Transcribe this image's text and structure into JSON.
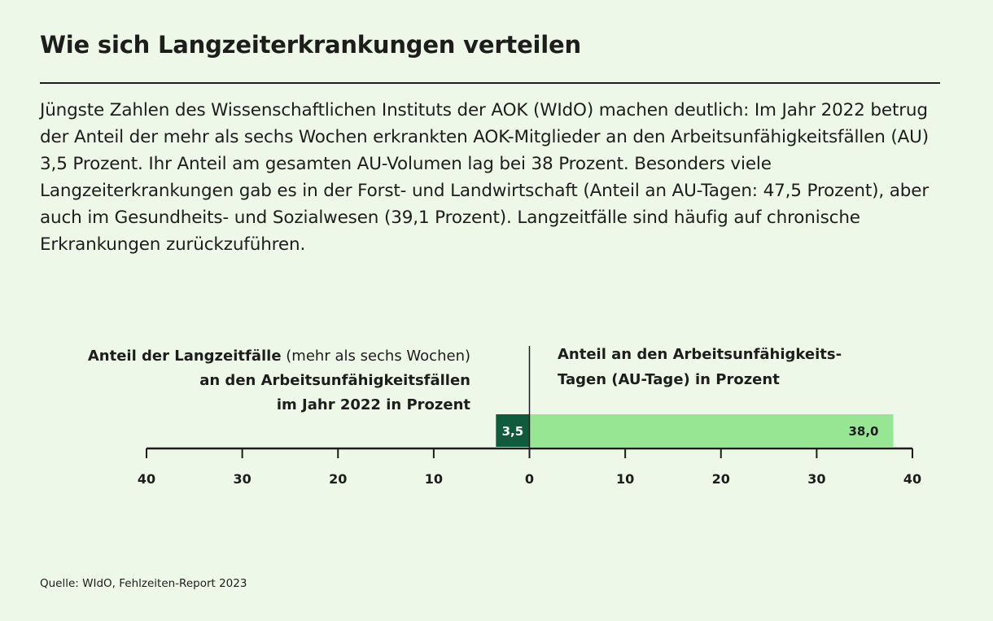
{
  "header": {
    "title": "Wie sich Langzeiterkrankungen verteilen",
    "intro": "Jüngste Zahlen des Wissenschaftlichen Instituts der AOK (WIdO) machen deutlich: Im Jahr 2022 betrug der Anteil der mehr als sechs Wochen erkrankten AOK-Mitglieder an den Arbeitsunfähigkeitsfällen (AU) 3,5 Prozent. Ihr Anteil am gesamten AU-Volumen lag bei 38 Prozent. Besonders viele Langzeiterkrankungen gab es in der Forst- und Landwirtschaft (Anteil an AU-Tagen: 47,5 Prozent), aber auch im Gesundheits- und Sozialwesen (39,1 Prozent). Langzeitfälle sind häufig auf chronische Erkrankungen zurückzuführen."
  },
  "labels": {
    "left_bold_1": "Anteil der Langzeitfälle",
    "left_light_1": "(mehr als sechs Wochen)",
    "left_bold_2": "an den Arbeitsunfähigkeitsfällen",
    "left_bold_3": "im Jahr 2022 in Prozent",
    "right_line_1": "Anteil an den Arbeitsunfähigkeits-",
    "right_line_2": "Tagen (AU-Tage) in Prozent"
  },
  "source": "Quelle: WIdO, Fehlzeiten-Report 2023",
  "chart_data": {
    "type": "bar",
    "orientation": "horizontal-diverging",
    "xlim": [
      -40,
      40
    ],
    "ticks": [
      -40,
      -30,
      -20,
      -10,
      0,
      10,
      20,
      30,
      40
    ],
    "tick_labels": [
      "40",
      "30",
      "20",
      "10",
      "0",
      "10",
      "20",
      "30",
      "40"
    ],
    "series": [
      {
        "side": "left",
        "value": 3.5,
        "label": "3,5",
        "color": "#0f5c3d",
        "label_color": "#ffffff"
      },
      {
        "side": "right",
        "value": 38.0,
        "label": "38,0",
        "color": "#97e694",
        "label_color": "#1d1d1b"
      }
    ]
  }
}
